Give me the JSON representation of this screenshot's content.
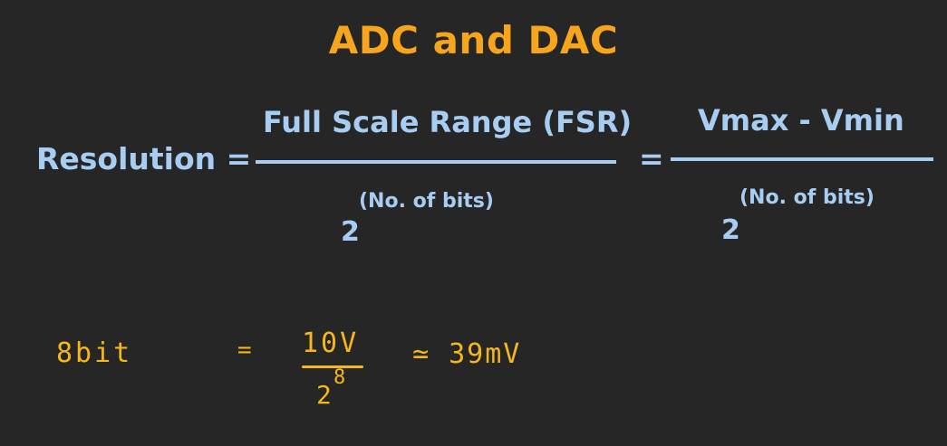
{
  "title": "ADC and DAC",
  "formula": {
    "lhs": "Resolution =",
    "numerator1": "Full Scale Range (FSR)",
    "denominator1_base": "2",
    "denominator1_exponent": "(No. of bits)",
    "equals": "=",
    "numerator2": "Vmax - Vmin",
    "denominator2_base": "2",
    "denominator2_exponent": "(No. of bits)"
  },
  "handwritten": {
    "label": "8bit",
    "equals": "=",
    "numerator": "10V",
    "denominator_base": "2",
    "denominator_exponent": "8",
    "approx": "≃ 39mV"
  },
  "colors": {
    "background": "#262626",
    "title": "#f7a51c",
    "formula": "#a8cdf2",
    "handwriting": "#f5b81a"
  }
}
